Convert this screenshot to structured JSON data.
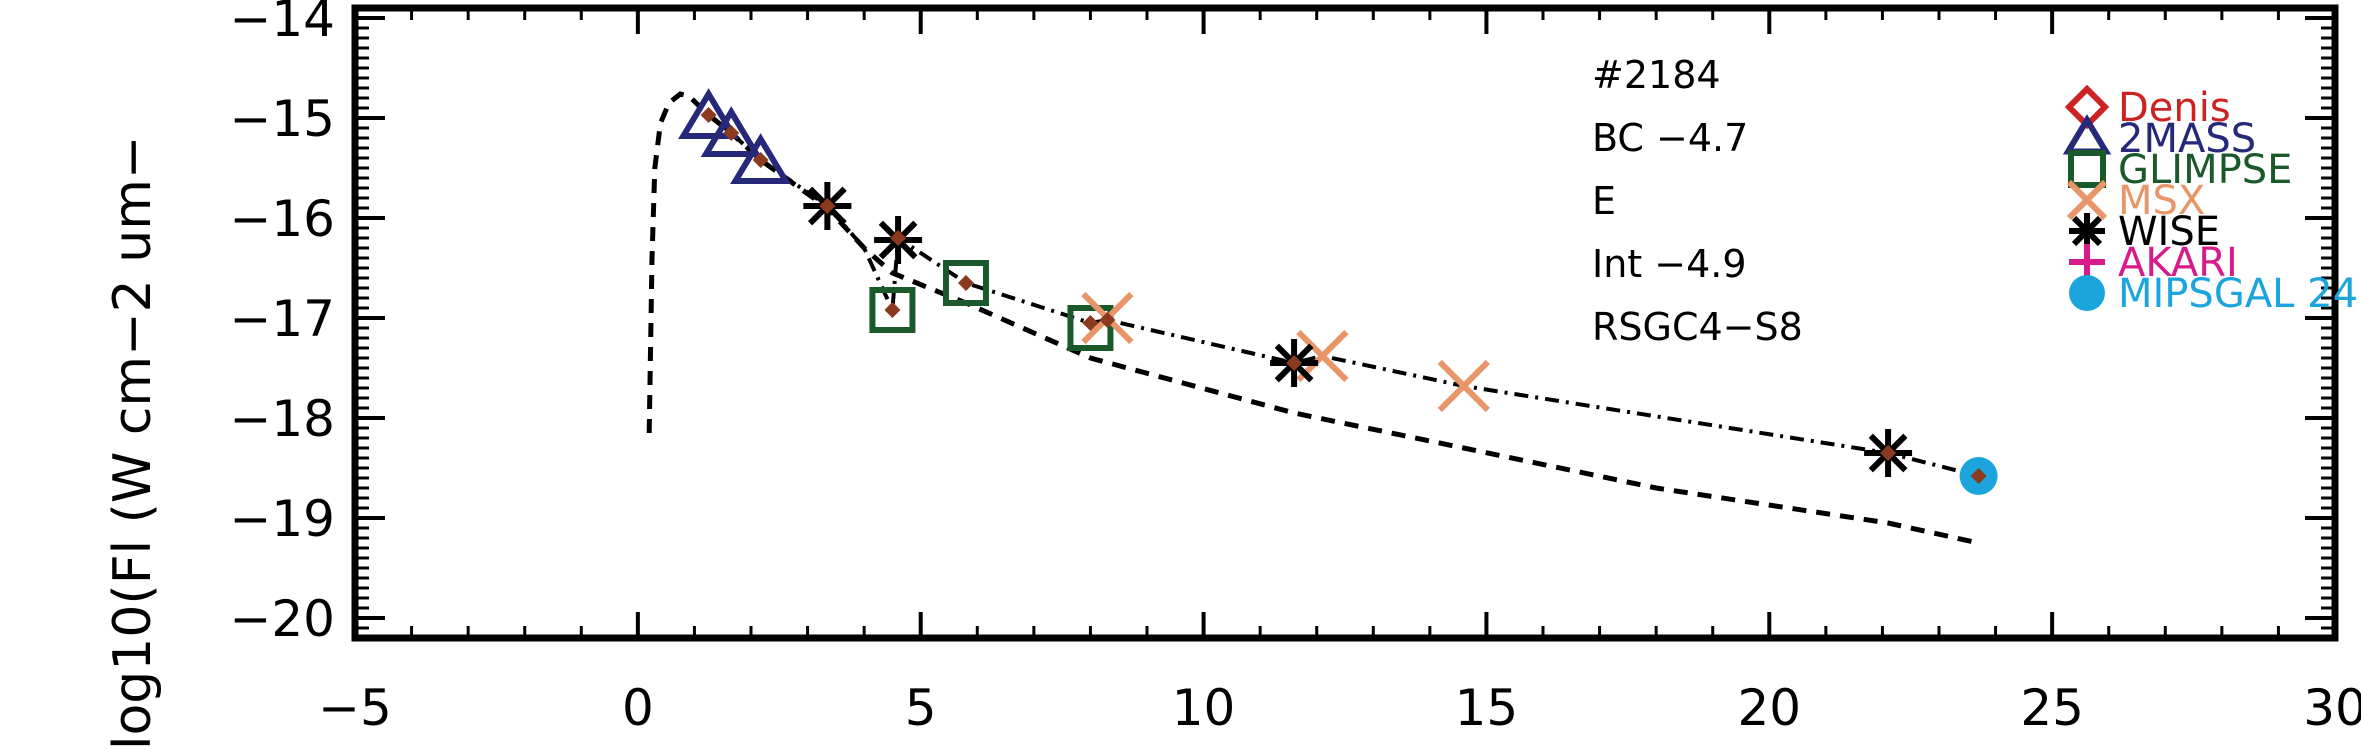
{
  "chart_data": {
    "type": "scatter",
    "title": "",
    "xlabel": "",
    "ylabel": "log10(Fl (W cm−2 um−",
    "xlim": [
      -5,
      30
    ],
    "ylim": [
      -20.2,
      -13.9
    ],
    "x_ticks": [
      -5,
      0,
      5,
      10,
      15,
      20,
      25,
      30
    ],
    "x_tick_labels": [
      "−5",
      "0",
      "5",
      "10",
      "15",
      "20",
      "25",
      "30"
    ],
    "y_ticks": [
      -20,
      -19,
      -18,
      -17,
      -16,
      -15,
      -14
    ],
    "y_tick_labels": [
      "−20",
      "−19",
      "−18",
      "−17",
      "−16",
      "−15",
      "−14"
    ],
    "annotations": [
      "#2184",
      "BC −4.7",
      "E",
      "Int −4.9",
      "RSGC4−S8"
    ],
    "legend_position": "right",
    "series": [
      {
        "name": "Denis",
        "marker": "diamond",
        "color": "#cc2222",
        "points": []
      },
      {
        "name": "2MASS",
        "marker": "triangle",
        "color": "#26287a",
        "points": [
          [
            1.25,
            -15.0
          ],
          [
            1.65,
            -15.18
          ],
          [
            2.17,
            -15.45
          ]
        ]
      },
      {
        "name": "GLIMPSE",
        "marker": "square",
        "color": "#1a5a2a",
        "points": [
          [
            4.5,
            -16.92
          ],
          [
            5.8,
            -16.65
          ],
          [
            8.0,
            -17.1
          ]
        ]
      },
      {
        "name": "MSX",
        "marker": "x",
        "color": "#e8956a",
        "points": [
          [
            8.3,
            -17.0
          ],
          [
            12.1,
            -17.38
          ],
          [
            14.6,
            -17.68
          ]
        ]
      },
      {
        "name": "WISE",
        "marker": "star",
        "color": "#000000",
        "points": [
          [
            3.35,
            -15.88
          ],
          [
            4.6,
            -16.22
          ],
          [
            11.6,
            -17.45
          ],
          [
            22.1,
            -18.35
          ]
        ]
      },
      {
        "name": "AKARI",
        "marker": "plus",
        "color": "#d81b8a",
        "points": []
      },
      {
        "name": "MIPSGAL 24",
        "marker": "circle",
        "color": "#1ca5dc",
        "points": [
          [
            23.7,
            -18.58
          ]
        ]
      }
    ],
    "model_points": [
      [
        1.25,
        -14.97
      ],
      [
        1.65,
        -15.15
      ],
      [
        2.17,
        -15.42
      ],
      [
        3.35,
        -15.88
      ],
      [
        4.5,
        -16.92
      ],
      [
        4.6,
        -16.2
      ],
      [
        5.8,
        -16.65
      ],
      [
        8.0,
        -17.05
      ],
      [
        8.3,
        -17.02
      ],
      [
        11.6,
        -17.45
      ],
      [
        22.1,
        -18.35
      ],
      [
        23.7,
        -18.58
      ]
    ],
    "model_color": "#8b3a1f",
    "dashdot_curve": [
      [
        1.25,
        -14.97
      ],
      [
        1.65,
        -15.15
      ],
      [
        2.17,
        -15.42
      ],
      [
        3.35,
        -15.88
      ],
      [
        4.0,
        -16.3
      ],
      [
        4.5,
        -16.92
      ],
      [
        4.6,
        -16.2
      ],
      [
        5.8,
        -16.65
      ],
      [
        8.0,
        -17.05
      ],
      [
        8.3,
        -17.02
      ],
      [
        11.6,
        -17.45
      ],
      [
        12.1,
        -17.38
      ],
      [
        14.6,
        -17.68
      ],
      [
        22.1,
        -18.35
      ],
      [
        23.7,
        -18.58
      ]
    ],
    "dashed_curve": [
      [
        0.2,
        -18.15
      ],
      [
        0.25,
        -16.4
      ],
      [
        0.3,
        -15.5
      ],
      [
        0.4,
        -15.05
      ],
      [
        0.55,
        -14.85
      ],
      [
        0.75,
        -14.76
      ],
      [
        0.9,
        -14.78
      ],
      [
        1.25,
        -14.97
      ],
      [
        1.65,
        -15.15
      ],
      [
        2.17,
        -15.42
      ],
      [
        3.35,
        -15.9
      ],
      [
        4.0,
        -16.3
      ],
      [
        4.5,
        -16.55
      ],
      [
        5.8,
        -16.85
      ],
      [
        8.0,
        -17.4
      ],
      [
        11.6,
        -17.95
      ],
      [
        14.6,
        -18.3
      ],
      [
        18.0,
        -18.7
      ],
      [
        22.1,
        -19.05
      ],
      [
        23.7,
        -19.25
      ]
    ]
  }
}
